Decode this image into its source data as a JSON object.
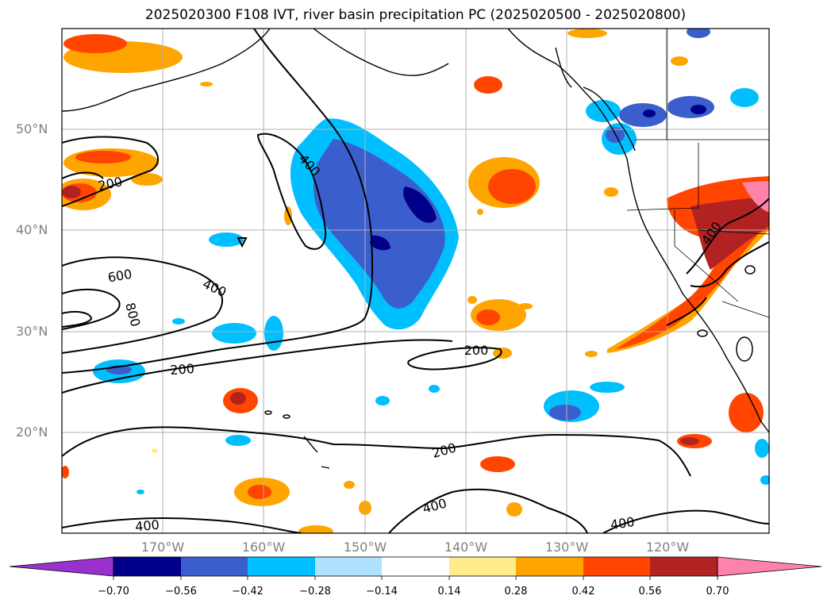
{
  "title": "2025020300 F108 IVT, river basin precipitation PC (2025020500 - 2025020800)",
  "lat_labels": [
    "50°N",
    "40°N",
    "30°N",
    "20°N"
  ],
  "lon_labels": [
    "170°W",
    "160°W",
    "150°W",
    "140°W",
    "130°W",
    "120°W"
  ],
  "contour_labels": [
    "200",
    "400",
    "600",
    "800",
    "200",
    "400",
    "200",
    "200",
    "400",
    "400",
    "400",
    "400"
  ],
  "colorbar": {
    "ticks": [
      "−0.70",
      "−0.56",
      "−0.42",
      "−0.28",
      "−0.14",
      "0.14",
      "0.28",
      "0.42",
      "0.56",
      "0.70"
    ],
    "colors": {
      "below": "#9932cc",
      "bins": [
        "#00008b",
        "#3a5fcd",
        "#00bfff",
        "#b0e2ff",
        "#ffffff",
        "#ffec8b",
        "#ffa500",
        "#ff4500",
        "#b22222",
        "#ff82ab"
      ],
      "above": "#ff82ab"
    }
  }
}
